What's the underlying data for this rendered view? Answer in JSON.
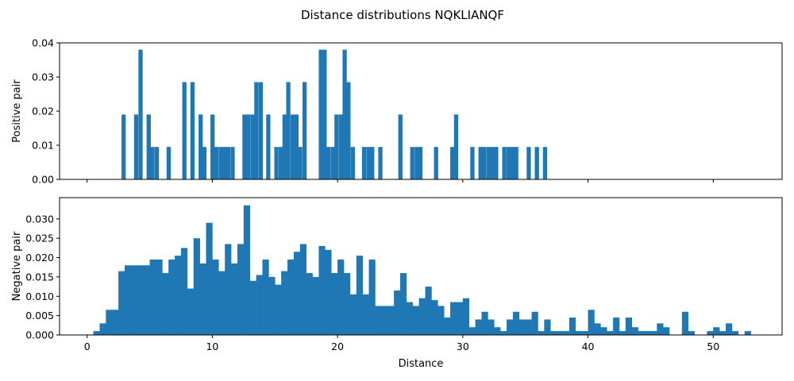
{
  "chart_data": {
    "title": "Distance distributions NQKLIANQF",
    "type": "bar",
    "xlabel": "Distance",
    "shared_x_ticks": [
      "0",
      "10",
      "20",
      "30",
      "40",
      "50"
    ],
    "xlim": [
      -2.2,
      55.5
    ],
    "color": "#1f77b4",
    "grid": false,
    "panels": [
      {
        "name": "positive",
        "ylabel": "Positive pair",
        "ylim": [
          0,
          0.04
        ],
        "yticks": [
          "0.00",
          "0.01",
          "0.02",
          "0.03",
          "0.04"
        ],
        "bin_width": 0.317,
        "bars": [
          [
            2.75,
            0.019
          ],
          [
            3.75,
            0.019
          ],
          [
            4.1,
            0.038
          ],
          [
            4.75,
            0.019
          ],
          [
            5.05,
            0.0095
          ],
          [
            5.4,
            0.0095
          ],
          [
            6.35,
            0.0095
          ],
          [
            7.6,
            0.0285
          ],
          [
            8.25,
            0.0285
          ],
          [
            8.9,
            0.019
          ],
          [
            9.2,
            0.0095
          ],
          [
            9.85,
            0.019
          ],
          [
            10.15,
            0.0095
          ],
          [
            10.5,
            0.0095
          ],
          [
            10.8,
            0.0095
          ],
          [
            11.1,
            0.0095
          ],
          [
            11.45,
            0.0095
          ],
          [
            12.4,
            0.019
          ],
          [
            12.7,
            0.019
          ],
          [
            13.05,
            0.019
          ],
          [
            13.35,
            0.0285
          ],
          [
            13.7,
            0.0285
          ],
          [
            14.3,
            0.019
          ],
          [
            14.95,
            0.0095
          ],
          [
            15.3,
            0.0095
          ],
          [
            15.6,
            0.019
          ],
          [
            15.9,
            0.0285
          ],
          [
            16.25,
            0.019
          ],
          [
            16.55,
            0.019
          ],
          [
            16.85,
            0.0095
          ],
          [
            17.2,
            0.0285
          ],
          [
            18.5,
            0.038
          ],
          [
            18.8,
            0.038
          ],
          [
            19.1,
            0.0095
          ],
          [
            19.45,
            0.0095
          ],
          [
            19.75,
            0.019
          ],
          [
            20.1,
            0.019
          ],
          [
            20.4,
            0.038
          ],
          [
            20.7,
            0.0285
          ],
          [
            21.05,
            0.0095
          ],
          [
            21.95,
            0.0095
          ],
          [
            22.3,
            0.0095
          ],
          [
            22.6,
            0.0095
          ],
          [
            23.25,
            0.0095
          ],
          [
            24.85,
            0.019
          ],
          [
            25.8,
            0.0095
          ],
          [
            26.15,
            0.0095
          ],
          [
            26.45,
            0.0095
          ],
          [
            27.7,
            0.0095
          ],
          [
            29.0,
            0.0095
          ],
          [
            29.3,
            0.019
          ],
          [
            30.6,
            0.0095
          ],
          [
            31.25,
            0.0095
          ],
          [
            31.55,
            0.0095
          ],
          [
            31.9,
            0.0095
          ],
          [
            32.2,
            0.0095
          ],
          [
            32.5,
            0.0095
          ],
          [
            33.15,
            0.0095
          ],
          [
            33.5,
            0.0095
          ],
          [
            33.8,
            0.0095
          ],
          [
            34.1,
            0.0095
          ],
          [
            35.1,
            0.0095
          ],
          [
            35.75,
            0.0095
          ],
          [
            36.4,
            0.0095
          ]
        ]
      },
      {
        "name": "negative",
        "ylabel": "Negative pair",
        "ylim": [
          0,
          0.0355
        ],
        "yticks": [
          "0.000",
          "0.005",
          "0.010",
          "0.015",
          "0.020",
          "0.025",
          "0.030"
        ],
        "bin_start": 0.5,
        "bin_width": 0.5,
        "values": [
          0.001,
          0.003,
          0.0065,
          0.0065,
          0.0165,
          0.018,
          0.018,
          0.018,
          0.018,
          0.0195,
          0.0195,
          0.016,
          0.0195,
          0.0205,
          0.0225,
          0.012,
          0.025,
          0.0185,
          0.029,
          0.0195,
          0.0165,
          0.0235,
          0.0185,
          0.0235,
          0.0335,
          0.014,
          0.0155,
          0.0195,
          0.015,
          0.013,
          0.0165,
          0.0195,
          0.0215,
          0.0235,
          0.016,
          0.015,
          0.023,
          0.022,
          0.016,
          0.0195,
          0.016,
          0.0105,
          0.0205,
          0.0105,
          0.0195,
          0.0075,
          0.0075,
          0.0075,
          0.0115,
          0.016,
          0.0085,
          0.0075,
          0.0095,
          0.0125,
          0.009,
          0.0075,
          0.0045,
          0.0085,
          0.0085,
          0.0095,
          0.002,
          0.004,
          0.006,
          0.004,
          0.002,
          0.001,
          0.004,
          0.006,
          0.004,
          0.004,
          0.006,
          0.001,
          0.004,
          0.001,
          0.001,
          0.001,
          0.0045,
          0.001,
          0.001,
          0.0065,
          0.003,
          0.002,
          0.001,
          0.0045,
          0.001,
          0.0045,
          0.002,
          0.001,
          0.001,
          0.001,
          0.003,
          0.002,
          0.0,
          0.0,
          0.006,
          0.001,
          0.0,
          0.0,
          0.001,
          0.002,
          0.001,
          0.003,
          0.0,
          0.0,
          0.0,
          0.0,
          0.0,
          0.0,
          0.0,
          0.0,
          0.0,
          0.0,
          0.0,
          0.0,
          0.0,
          0.0,
          0.0,
          0.0,
          0.0,
          0.0
        ],
        "extra_bars": [
          [
            51.5,
            0.001
          ],
          [
            52.5,
            0.001
          ]
        ]
      }
    ]
  }
}
